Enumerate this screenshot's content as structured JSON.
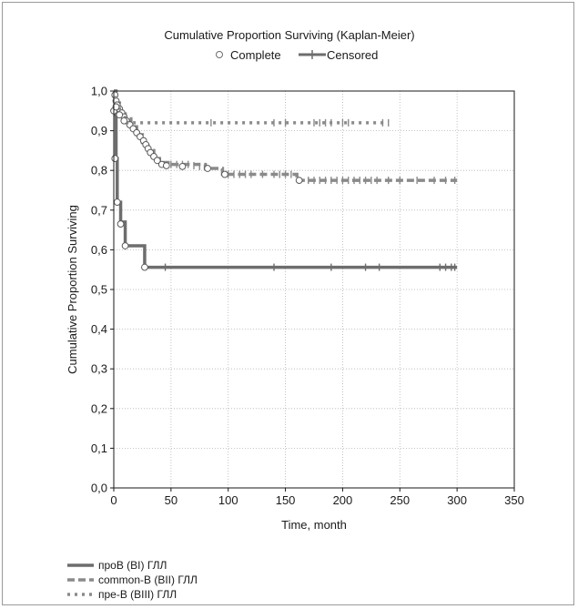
{
  "chart_data": {
    "type": "line",
    "title": "Cumulative Proportion Surviving (Kaplan-Meier)",
    "xlabel": "Time, month",
    "ylabel": "Cumulative Proportion Surviving",
    "xlim": [
      0,
      350
    ],
    "ylim": [
      0,
      1.0
    ],
    "x_ticks": [
      "0",
      "50",
      "100",
      "150",
      "200",
      "250",
      "300",
      "350"
    ],
    "y_ticks": [
      "0,0",
      "0,1",
      "0,2",
      "0,3",
      "0,4",
      "0,5",
      "0,6",
      "0,7",
      "0,8",
      "0,9",
      "1,0"
    ],
    "grid": true,
    "marker_legend": {
      "complete": "Complete",
      "censored": "Censored"
    },
    "series": [
      {
        "name": "проB (BI) ГЛЛ",
        "style": "solid",
        "color": "#6d6d6d",
        "steps": [
          [
            0,
            1.0
          ],
          [
            1,
            0.94
          ],
          [
            2,
            0.83
          ],
          [
            3,
            0.72
          ],
          [
            6,
            0.67
          ],
          [
            10,
            0.61
          ],
          [
            27,
            0.556
          ],
          [
            300,
            0.556
          ]
        ],
        "complete": [
          [
            0,
            0.95
          ],
          [
            1,
            0.83
          ],
          [
            3,
            0.72
          ],
          [
            6,
            0.665
          ],
          [
            10,
            0.61
          ],
          [
            27,
            0.556
          ]
        ],
        "censored": [
          [
            45,
            0.556
          ],
          [
            140,
            0.556
          ],
          [
            190,
            0.556
          ],
          [
            220,
            0.556
          ],
          [
            232,
            0.556
          ],
          [
            285,
            0.556
          ],
          [
            290,
            0.556
          ],
          [
            295,
            0.556
          ],
          [
            298,
            0.556
          ]
        ]
      },
      {
        "name": "common-B (BII) ГЛЛ",
        "style": "dashed",
        "color": "#8a8a8a",
        "steps": [
          [
            0,
            1.0
          ],
          [
            2,
            0.97
          ],
          [
            5,
            0.95
          ],
          [
            10,
            0.93
          ],
          [
            15,
            0.91
          ],
          [
            20,
            0.89
          ],
          [
            25,
            0.87
          ],
          [
            30,
            0.85
          ],
          [
            35,
            0.83
          ],
          [
            40,
            0.82
          ],
          [
            50,
            0.815
          ],
          [
            80,
            0.805
          ],
          [
            95,
            0.79
          ],
          [
            160,
            0.775
          ],
          [
            300,
            0.775
          ]
        ],
        "complete": [
          [
            1,
            0.99
          ],
          [
            2,
            0.975
          ],
          [
            3,
            0.965
          ],
          [
            5,
            0.955
          ],
          [
            7,
            0.945
          ],
          [
            9,
            0.935
          ],
          [
            11,
            0.925
          ],
          [
            14,
            0.915
          ],
          [
            17,
            0.905
          ],
          [
            20,
            0.895
          ],
          [
            23,
            0.885
          ],
          [
            26,
            0.875
          ],
          [
            28,
            0.865
          ],
          [
            30,
            0.855
          ],
          [
            32,
            0.845
          ],
          [
            35,
            0.835
          ],
          [
            38,
            0.825
          ],
          [
            42,
            0.815
          ],
          [
            46,
            0.812
          ],
          [
            60,
            0.81
          ],
          [
            82,
            0.805
          ],
          [
            97,
            0.79
          ],
          [
            162,
            0.775
          ]
        ],
        "censored": [
          [
            50,
            0.815
          ],
          [
            55,
            0.815
          ],
          [
            60,
            0.815
          ],
          [
            65,
            0.815
          ],
          [
            70,
            0.812
          ],
          [
            75,
            0.81
          ],
          [
            100,
            0.79
          ],
          [
            105,
            0.79
          ],
          [
            110,
            0.79
          ],
          [
            115,
            0.79
          ],
          [
            120,
            0.79
          ],
          [
            130,
            0.79
          ],
          [
            140,
            0.79
          ],
          [
            145,
            0.79
          ],
          [
            150,
            0.79
          ],
          [
            155,
            0.79
          ],
          [
            170,
            0.775
          ],
          [
            175,
            0.775
          ],
          [
            180,
            0.775
          ],
          [
            185,
            0.775
          ],
          [
            190,
            0.775
          ],
          [
            195,
            0.775
          ],
          [
            200,
            0.775
          ],
          [
            205,
            0.775
          ],
          [
            210,
            0.775
          ],
          [
            215,
            0.775
          ],
          [
            220,
            0.775
          ],
          [
            225,
            0.775
          ],
          [
            230,
            0.775
          ],
          [
            240,
            0.775
          ],
          [
            250,
            0.775
          ],
          [
            265,
            0.775
          ],
          [
            280,
            0.775
          ],
          [
            290,
            0.775
          ],
          [
            298,
            0.775
          ]
        ]
      },
      {
        "name": "пре-B (BIII) ГЛЛ",
        "style": "dotted",
        "color": "#8a8a8a",
        "steps": [
          [
            0,
            1.0
          ],
          [
            2,
            0.96
          ],
          [
            5,
            0.94
          ],
          [
            10,
            0.92
          ],
          [
            240,
            0.92
          ]
        ],
        "complete": [
          [
            2,
            0.96
          ],
          [
            5,
            0.94
          ],
          [
            9,
            0.925
          ]
        ],
        "censored": [
          [
            85,
            0.92
          ],
          [
            140,
            0.92
          ],
          [
            150,
            0.92
          ],
          [
            175,
            0.92
          ],
          [
            180,
            0.92
          ],
          [
            185,
            0.92
          ],
          [
            190,
            0.92
          ],
          [
            200,
            0.92
          ],
          [
            205,
            0.92
          ],
          [
            235,
            0.92
          ],
          [
            240,
            0.92
          ]
        ]
      }
    ]
  }
}
